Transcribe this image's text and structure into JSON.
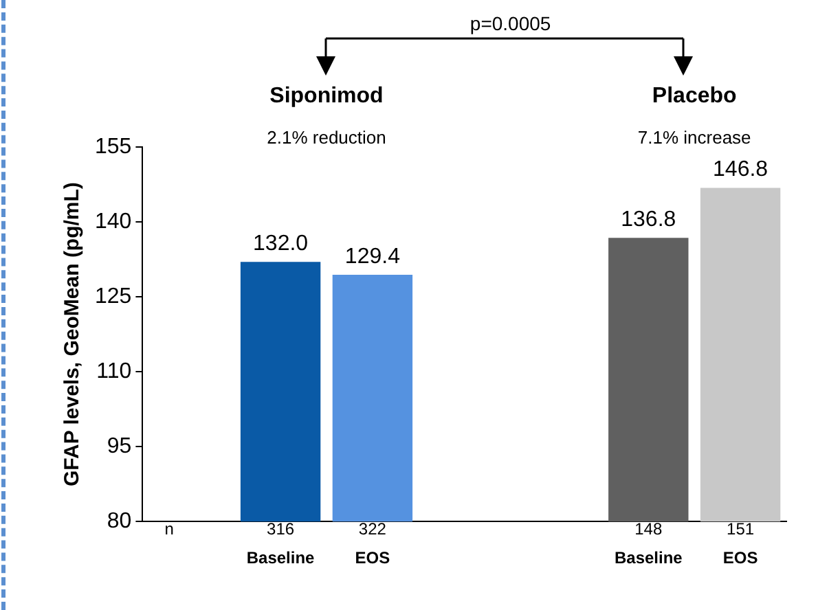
{
  "chart_data": {
    "type": "bar",
    "ylabel": "GFAP levels, GeoMean (pg/mL)",
    "categories": [
      null,
      "Baseline",
      "EOS",
      null,
      null,
      "Baseline",
      "EOS"
    ],
    "values": [
      null,
      132.0,
      129.4,
      null,
      null,
      136.8,
      146.8
    ],
    "colors": [
      "#ffffff",
      "#0a5aa6",
      "#5592e0",
      "#ffffff",
      "#ffffff",
      "#606060",
      "#c8c8c8"
    ],
    "value_labels": [
      null,
      "132.0",
      "129.4",
      null,
      null,
      "136.8",
      "146.8"
    ],
    "ylim": [
      80,
      155
    ],
    "yticks": [
      80,
      95,
      110,
      125,
      140,
      155
    ],
    "grid": false,
    "legend": false,
    "annotations": [
      "Siponimod",
      "2.1% reduction",
      "Placebo",
      "7.1% increase",
      "p=0.0005",
      "n",
      "316",
      "322",
      "148",
      "151"
    ]
  }
}
